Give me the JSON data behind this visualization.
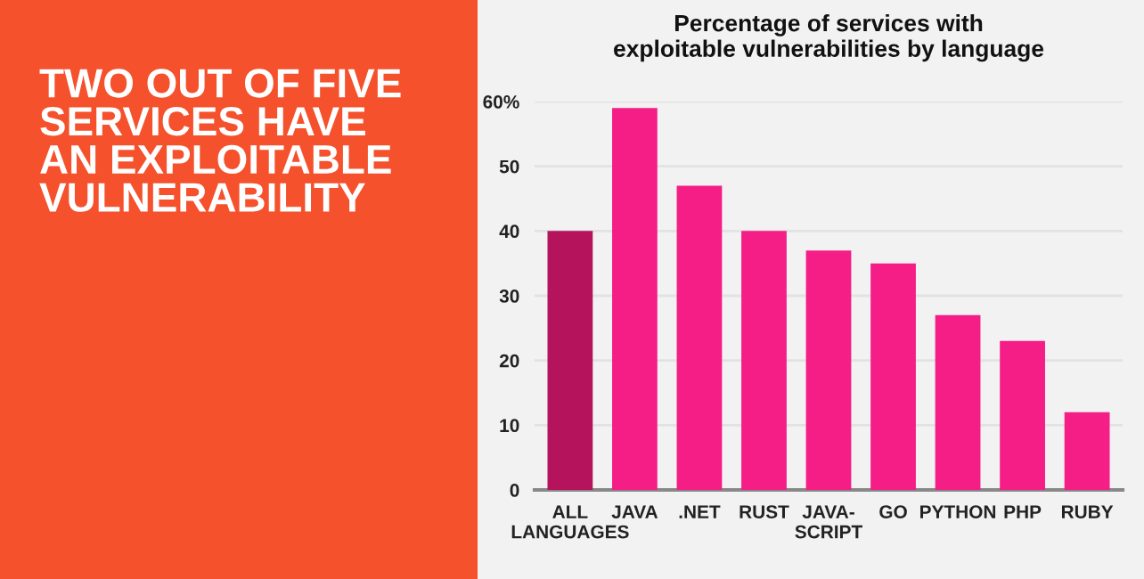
{
  "chart_data": {
    "type": "bar",
    "title": "TWO OUT OF FIVE\nSERVICES HAVE\nAN EXPLOITABLE\nVULNERABILITY",
    "subtitle": "Percentage of services with\nexploitable vulnerabilities by language",
    "categories": [
      "ALL\nLANGUAGES",
      "JAVA",
      ".NET",
      "RUST",
      "JAVA-\nSCRIPT",
      "GO",
      "PYTHON",
      "PHP",
      "RUBY"
    ],
    "values": [
      40,
      59,
      47,
      40,
      37,
      35,
      27,
      23,
      12
    ],
    "colors": [
      "#b5135c",
      "#f51d86",
      "#f51d86",
      "#f51d86",
      "#f51d86",
      "#f51d86",
      "#f51d86",
      "#f51d86",
      "#f51d86"
    ],
    "ylim": [
      0,
      60
    ],
    "yticks": [
      0,
      10,
      20,
      30,
      40,
      50,
      {
        "value": 60,
        "label": "60%"
      }
    ],
    "grid": "y"
  }
}
